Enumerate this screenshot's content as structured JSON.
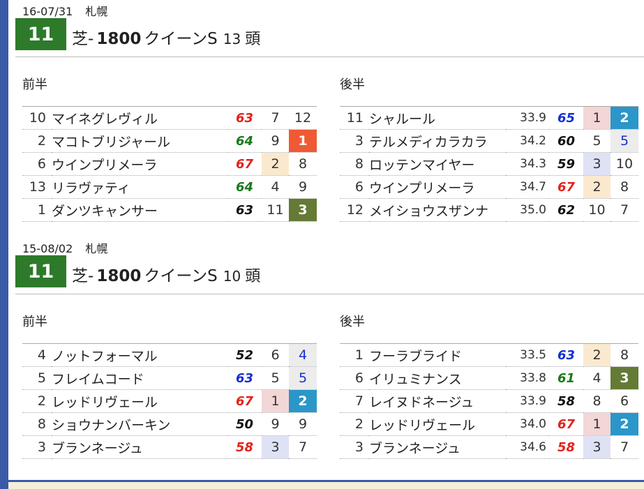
{
  "races": [
    {
      "date": "16-07/31",
      "venue": "札幌",
      "race_number": "11",
      "surface": "芝-",
      "distance": "1800",
      "race_name": "クイーンS",
      "field_count": "13",
      "count_unit": "頭",
      "first_half": {
        "label": "前半",
        "rows": [
          {
            "no": "10",
            "name": "マイネグレヴィル",
            "index": "63",
            "index_color": "red",
            "pos": "7",
            "pos_bg": "",
            "rank": "12",
            "rank_style": ""
          },
          {
            "no": "2",
            "name": "マコトブリジャール",
            "index": "64",
            "index_color": "green",
            "pos": "9",
            "pos_bg": "",
            "rank": "1",
            "rank_style": "1"
          },
          {
            "no": "6",
            "name": "ウインプリメーラ",
            "index": "67",
            "index_color": "red",
            "pos": "2",
            "pos_bg": "2",
            "rank": "8",
            "rank_style": ""
          },
          {
            "no": "13",
            "name": "リラヴァティ",
            "index": "64",
            "index_color": "green",
            "pos": "4",
            "pos_bg": "",
            "rank": "9",
            "rank_style": ""
          },
          {
            "no": "1",
            "name": "ダンツキャンサー",
            "index": "63",
            "index_color": "black",
            "pos": "11",
            "pos_bg": "",
            "rank": "3",
            "rank_style": "3"
          }
        ]
      },
      "second_half": {
        "label": "後半",
        "rows": [
          {
            "no": "11",
            "name": "シャルール",
            "time": "33.9",
            "index": "65",
            "index_color": "blue",
            "pos": "1",
            "pos_bg": "1",
            "rank": "2",
            "rank_style": "2"
          },
          {
            "no": "3",
            "name": "テルメディカラカラ",
            "time": "34.2",
            "index": "60",
            "index_color": "black",
            "pos": "5",
            "pos_bg": "",
            "rank": "5",
            "rank_style": "5"
          },
          {
            "no": "8",
            "name": "ロッテンマイヤー",
            "time": "34.3",
            "index": "59",
            "index_color": "black",
            "pos": "3",
            "pos_bg": "3",
            "rank": "10",
            "rank_style": ""
          },
          {
            "no": "6",
            "name": "ウインプリメーラ",
            "time": "34.7",
            "index": "67",
            "index_color": "red",
            "pos": "2",
            "pos_bg": "2",
            "rank": "8",
            "rank_style": ""
          },
          {
            "no": "12",
            "name": "メイショウスザンナ",
            "time": "35.0",
            "index": "62",
            "index_color": "black",
            "pos": "10",
            "pos_bg": "",
            "rank": "7",
            "rank_style": ""
          }
        ]
      }
    },
    {
      "date": "15-08/02",
      "venue": "札幌",
      "race_number": "11",
      "surface": "芝-",
      "distance": "1800",
      "race_name": "クイーンS",
      "field_count": "10",
      "count_unit": "頭",
      "first_half": {
        "label": "前半",
        "rows": [
          {
            "no": "4",
            "name": "ノットフォーマル",
            "index": "52",
            "index_color": "black",
            "pos": "6",
            "pos_bg": "",
            "rank": "4",
            "rank_style": "4"
          },
          {
            "no": "5",
            "name": "フレイムコード",
            "index": "63",
            "index_color": "blue",
            "pos": "5",
            "pos_bg": "",
            "rank": "5",
            "rank_style": "5"
          },
          {
            "no": "2",
            "name": "レッドリヴェール",
            "index": "67",
            "index_color": "red",
            "pos": "1",
            "pos_bg": "1",
            "rank": "2",
            "rank_style": "2"
          },
          {
            "no": "8",
            "name": "ショウナンバーキン",
            "index": "50",
            "index_color": "black",
            "pos": "9",
            "pos_bg": "",
            "rank": "9",
            "rank_style": ""
          },
          {
            "no": "3",
            "name": "ブランネージュ",
            "index": "58",
            "index_color": "red",
            "pos": "3",
            "pos_bg": "3",
            "rank": "7",
            "rank_style": ""
          }
        ]
      },
      "second_half": {
        "label": "後半",
        "rows": [
          {
            "no": "1",
            "name": "フーラブライド",
            "time": "33.5",
            "index": "63",
            "index_color": "blue",
            "pos": "2",
            "pos_bg": "2",
            "rank": "8",
            "rank_style": ""
          },
          {
            "no": "6",
            "name": "イリュミナンス",
            "time": "33.8",
            "index": "61",
            "index_color": "green",
            "pos": "4",
            "pos_bg": "",
            "rank": "3",
            "rank_style": "3"
          },
          {
            "no": "7",
            "name": "レイヌドネージュ",
            "time": "33.9",
            "index": "58",
            "index_color": "black",
            "pos": "8",
            "pos_bg": "",
            "rank": "6",
            "rank_style": ""
          },
          {
            "no": "2",
            "name": "レッドリヴェール",
            "time": "34.0",
            "index": "67",
            "index_color": "red",
            "pos": "1",
            "pos_bg": "1",
            "rank": "2",
            "rank_style": "2"
          },
          {
            "no": "3",
            "name": "ブランネージュ",
            "time": "34.6",
            "index": "58",
            "index_color": "red",
            "pos": "3",
            "pos_bg": "3",
            "rank": "7",
            "rank_style": ""
          }
        ]
      }
    }
  ],
  "colors": {
    "race_badge": "#2d7a2a",
    "index_red": "#e2231a",
    "index_green": "#1a7a1a",
    "index_blue": "#1530d0",
    "rank_1": "#ef5a34",
    "rank_2": "#2b96c9",
    "rank_3": "#647a35"
  }
}
